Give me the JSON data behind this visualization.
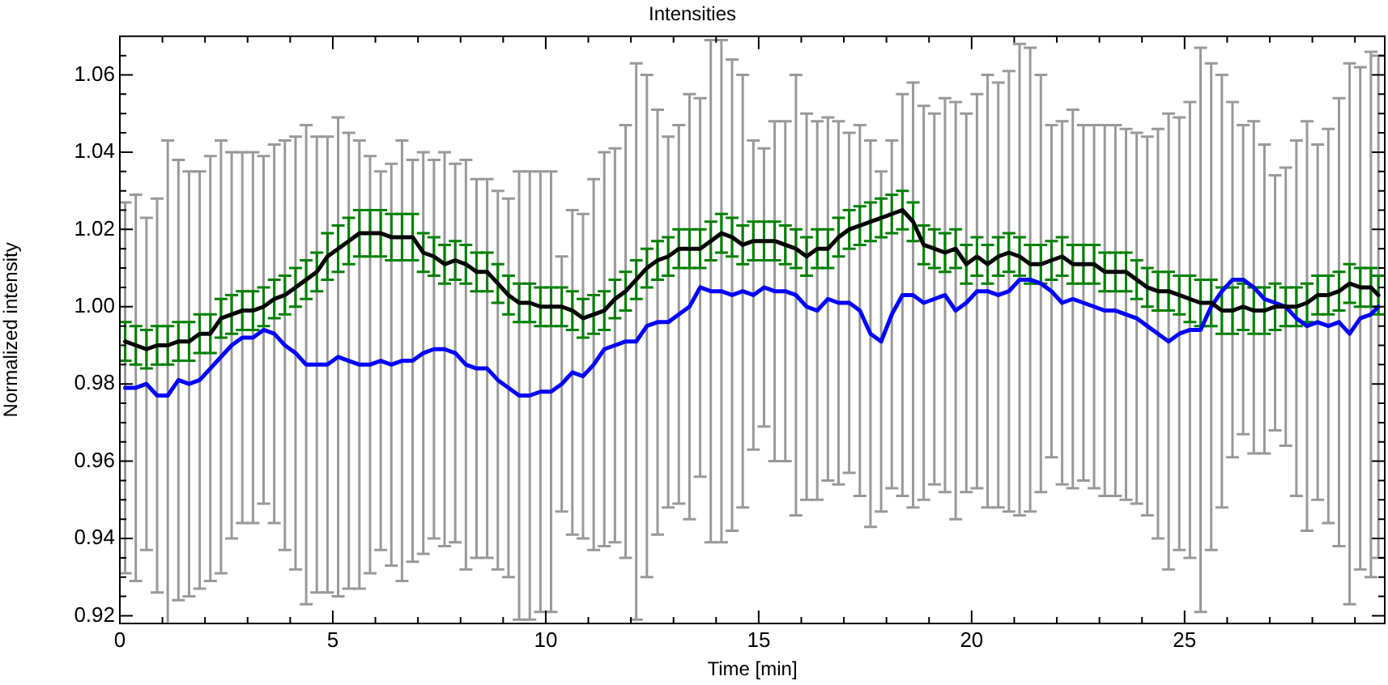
{
  "chart_data": {
    "type": "line",
    "title": "Intensities",
    "xlabel": "Time [min]",
    "ylabel": "Normalized intensity",
    "x": [
      0.125,
      0.375,
      0.625,
      0.875,
      1.125,
      1.375,
      1.625,
      1.875,
      2.125,
      2.375,
      2.625,
      2.875,
      3.125,
      3.375,
      3.625,
      3.875,
      4.125,
      4.375,
      4.625,
      4.875,
      5.125,
      5.375,
      5.625,
      5.875,
      6.125,
      6.375,
      6.625,
      6.875,
      7.125,
      7.375,
      7.625,
      7.875,
      8.125,
      8.375,
      8.625,
      8.875,
      9.125,
      9.375,
      9.625,
      9.875,
      10.125,
      10.375,
      10.625,
      10.875,
      11.125,
      11.375,
      11.625,
      11.875,
      12.125,
      12.375,
      12.625,
      12.875,
      13.125,
      13.375,
      13.625,
      13.875,
      14.125,
      14.375,
      14.625,
      14.875,
      15.125,
      15.375,
      15.625,
      15.875,
      16.125,
      16.375,
      16.625,
      16.875,
      17.125,
      17.375,
      17.625,
      17.875,
      18.125,
      18.375,
      18.625,
      18.875,
      19.125,
      19.375,
      19.625,
      19.875,
      20.125,
      20.375,
      20.625,
      20.875,
      21.125,
      21.375,
      21.625,
      21.875,
      22.125,
      22.375,
      22.625,
      22.875,
      23.125,
      23.375,
      23.625,
      23.875,
      24.125,
      24.375,
      24.625,
      24.875,
      25.125,
      25.375,
      25.625,
      25.875,
      26.125,
      26.375,
      26.625,
      26.875,
      27.125,
      27.375,
      27.625,
      27.875,
      28.125,
      28.375,
      28.625,
      28.875,
      29.125,
      29.375,
      29.55
    ],
    "series": [
      {
        "color": "#0000ff",
        "values": [
          0.979,
          0.979,
          0.98,
          0.977,
          0.977,
          0.981,
          0.98,
          0.981,
          0.984,
          0.987,
          0.99,
          0.992,
          0.992,
          0.994,
          0.993,
          0.99,
          0.988,
          0.985,
          0.985,
          0.985,
          0.987,
          0.986,
          0.985,
          0.985,
          0.986,
          0.985,
          0.986,
          0.986,
          0.988,
          0.989,
          0.989,
          0.988,
          0.985,
          0.984,
          0.984,
          0.981,
          0.979,
          0.977,
          0.977,
          0.978,
          0.978,
          0.98,
          0.983,
          0.982,
          0.985,
          0.989,
          0.99,
          0.991,
          0.991,
          0.995,
          0.996,
          0.996,
          0.998,
          1.0,
          1.005,
          1.004,
          1.004,
          1.003,
          1.004,
          1.003,
          1.005,
          1.004,
          1.004,
          1.003,
          1.0,
          0.999,
          1.002,
          1.001,
          1.001,
          0.999,
          0.993,
          0.991,
          0.998,
          1.003,
          1.003,
          1.001,
          1.002,
          1.003,
          0.999,
          1.001,
          1.004,
          1.004,
          1.003,
          1.004,
          1.007,
          1.007,
          1.006,
          1.004,
          1.001,
          1.002,
          1.001,
          1.0,
          0.999,
          0.999,
          0.998,
          0.997,
          0.995,
          0.993,
          0.991,
          0.993,
          0.994,
          0.994,
          1.0,
          1.004,
          1.007,
          1.007,
          1.005,
          1.002,
          1.001,
          1.0,
          0.997,
          0.995,
          0.996,
          0.995,
          0.996,
          0.993,
          0.997,
          0.998,
          1.0
        ],
        "errors": [
          0.048,
          0.05,
          0.043,
          0.051,
          0.066,
          0.057,
          0.055,
          0.054,
          0.055,
          0.056,
          0.05,
          0.048,
          0.048,
          0.045,
          0.049,
          0.053,
          0.056,
          0.062,
          0.059,
          0.059,
          0.062,
          0.059,
          0.058,
          0.054,
          0.049,
          0.052,
          0.057,
          0.052,
          0.052,
          0.049,
          0.051,
          0.049,
          0.053,
          0.049,
          0.049,
          0.049,
          0.049,
          0.058,
          0.058,
          0.057,
          0.057,
          0.033,
          0.042,
          0.042,
          0.048,
          0.051,
          0.051,
          0.056,
          0.072,
          0.065,
          0.055,
          0.048,
          0.049,
          0.055,
          0.049,
          0.065,
          0.065,
          0.061,
          0.056,
          0.04,
          0.036,
          0.044,
          0.044,
          0.057,
          0.05,
          0.049,
          0.047,
          0.047,
          0.044,
          0.048,
          0.05,
          0.044,
          0.045,
          0.052,
          0.055,
          0.051,
          0.048,
          0.051,
          0.054,
          0.049,
          0.051,
          0.056,
          0.055,
          0.057,
          0.061,
          0.06,
          0.054,
          0.043,
          0.047,
          0.049,
          0.046,
          0.047,
          0.048,
          0.048,
          0.048,
          0.048,
          0.049,
          0.053,
          0.059,
          0.056,
          0.059,
          0.073,
          0.063,
          0.056,
          0.046,
          0.04,
          0.043,
          0.04,
          0.033,
          0.036,
          0.046,
          0.053,
          0.046,
          0.051,
          0.058,
          0.07,
          0.065,
          0.068,
          0.065
        ]
      },
      {
        "color": "#000000",
        "values": [
          0.991,
          0.99,
          0.989,
          0.99,
          0.99,
          0.991,
          0.991,
          0.993,
          0.993,
          0.997,
          0.998,
          0.999,
          0.999,
          1.0,
          1.002,
          1.003,
          1.005,
          1.007,
          1.009,
          1.013,
          1.015,
          1.017,
          1.019,
          1.019,
          1.019,
          1.018,
          1.018,
          1.018,
          1.014,
          1.013,
          1.011,
          1.012,
          1.011,
          1.009,
          1.009,
          1.006,
          1.003,
          1.001,
          1.001,
          1.0,
          1.0,
          1.0,
          0.999,
          0.997,
          0.998,
          0.999,
          1.002,
          1.004,
          1.007,
          1.01,
          1.012,
          1.013,
          1.015,
          1.015,
          1.015,
          1.017,
          1.019,
          1.018,
          1.016,
          1.017,
          1.017,
          1.017,
          1.016,
          1.015,
          1.013,
          1.015,
          1.015,
          1.018,
          1.02,
          1.021,
          1.022,
          1.023,
          1.024,
          1.025,
          1.022,
          1.016,
          1.015,
          1.014,
          1.015,
          1.011,
          1.013,
          1.011,
          1.013,
          1.014,
          1.013,
          1.011,
          1.011,
          1.012,
          1.013,
          1.011,
          1.011,
          1.011,
          1.009,
          1.009,
          1.009,
          1.007,
          1.005,
          1.004,
          1.004,
          1.003,
          1.002,
          1.001,
          1.001,
          0.999,
          0.999,
          1.0,
          0.999,
          0.999,
          1.0,
          1.0,
          1.0,
          1.001,
          1.003,
          1.003,
          1.004,
          1.006,
          1.005,
          1.005,
          1.003
        ],
        "errors": [
          0.005,
          0.005,
          0.005,
          0.005,
          0.005,
          0.005,
          0.005,
          0.005,
          0.005,
          0.005,
          0.005,
          0.005,
          0.005,
          0.005,
          0.005,
          0.005,
          0.005,
          0.005,
          0.005,
          0.006,
          0.006,
          0.006,
          0.006,
          0.006,
          0.006,
          0.006,
          0.006,
          0.006,
          0.005,
          0.005,
          0.005,
          0.005,
          0.005,
          0.005,
          0.005,
          0.005,
          0.005,
          0.005,
          0.005,
          0.005,
          0.005,
          0.005,
          0.005,
          0.005,
          0.005,
          0.005,
          0.005,
          0.005,
          0.005,
          0.005,
          0.005,
          0.005,
          0.005,
          0.005,
          0.005,
          0.005,
          0.005,
          0.005,
          0.005,
          0.005,
          0.005,
          0.005,
          0.005,
          0.005,
          0.005,
          0.005,
          0.005,
          0.005,
          0.005,
          0.005,
          0.005,
          0.005,
          0.005,
          0.005,
          0.005,
          0.005,
          0.005,
          0.005,
          0.005,
          0.005,
          0.005,
          0.005,
          0.005,
          0.005,
          0.005,
          0.005,
          0.005,
          0.005,
          0.005,
          0.005,
          0.005,
          0.005,
          0.005,
          0.005,
          0.005,
          0.005,
          0.005,
          0.005,
          0.005,
          0.005,
          0.006,
          0.006,
          0.006,
          0.006,
          0.006,
          0.006,
          0.006,
          0.006,
          0.006,
          0.005,
          0.005,
          0.005,
          0.005,
          0.005,
          0.005,
          0.005,
          0.005,
          0.005,
          0.005
        ]
      }
    ],
    "xlim": [
      0,
      29.7
    ],
    "xticks": [
      0,
      {
        "value": 1,
        "label": null
      },
      {
        "value": 2,
        "label": null
      },
      {
        "value": 3,
        "label": null
      },
      {
        "value": 4,
        "label": null
      },
      5,
      {
        "value": 6,
        "label": null
      },
      {
        "value": 7,
        "label": null
      },
      {
        "value": 8,
        "label": null
      },
      {
        "value": 9,
        "label": null
      },
      10,
      {
        "value": 11,
        "label": null
      },
      {
        "value": 12,
        "label": null
      },
      {
        "value": 13,
        "label": null
      },
      {
        "value": 14,
        "label": null
      },
      15,
      {
        "value": 16,
        "label": null
      },
      {
        "value": 17,
        "label": null
      },
      {
        "value": 18,
        "label": null
      },
      {
        "value": 19,
        "label": null
      },
      20,
      {
        "value": 21,
        "label": null
      },
      {
        "value": 22,
        "label": null
      },
      {
        "value": 23,
        "label": null
      },
      {
        "value": 24,
        "label": null
      },
      25,
      {
        "value": 26,
        "label": null
      },
      {
        "value": 27,
        "label": null
      },
      {
        "value": 28,
        "label": null
      },
      {
        "value": 29,
        "label": null
      }
    ],
    "ylim": [
      0.918,
      1.07
    ],
    "yticks": [
      0.92,
      {
        "value": 0.925,
        "label": null
      },
      {
        "value": 0.93,
        "label": null
      },
      {
        "value": 0.935,
        "label": null
      },
      0.94,
      {
        "value": 0.945,
        "label": null
      },
      {
        "value": 0.95,
        "label": null
      },
      {
        "value": 0.955,
        "label": null
      },
      0.96,
      {
        "value": 0.965,
        "label": null
      },
      {
        "value": 0.97,
        "label": null
      },
      {
        "value": 0.975,
        "label": null
      },
      0.98,
      {
        "value": 0.985,
        "label": null
      },
      {
        "value": 0.99,
        "label": null
      },
      {
        "value": 0.995,
        "label": null
      },
      {
        "value": 1,
        "label": "1.00"
      },
      {
        "value": 1.005,
        "label": null
      },
      {
        "value": 1.01,
        "label": null
      },
      {
        "value": 1.015,
        "label": null
      },
      1.02,
      {
        "value": 1.025,
        "label": null
      },
      {
        "value": 1.03,
        "label": null
      },
      {
        "value": 1.035,
        "label": null
      },
      1.04,
      {
        "value": 1.045,
        "label": null
      },
      {
        "value": 1.05,
        "label": null
      },
      {
        "value": 1.055,
        "label": null
      },
      1.06,
      {
        "value": 1.065,
        "label": null
      }
    ],
    "grid": false,
    "legend": false,
    "marker": "none",
    "line_style": "solid"
  }
}
